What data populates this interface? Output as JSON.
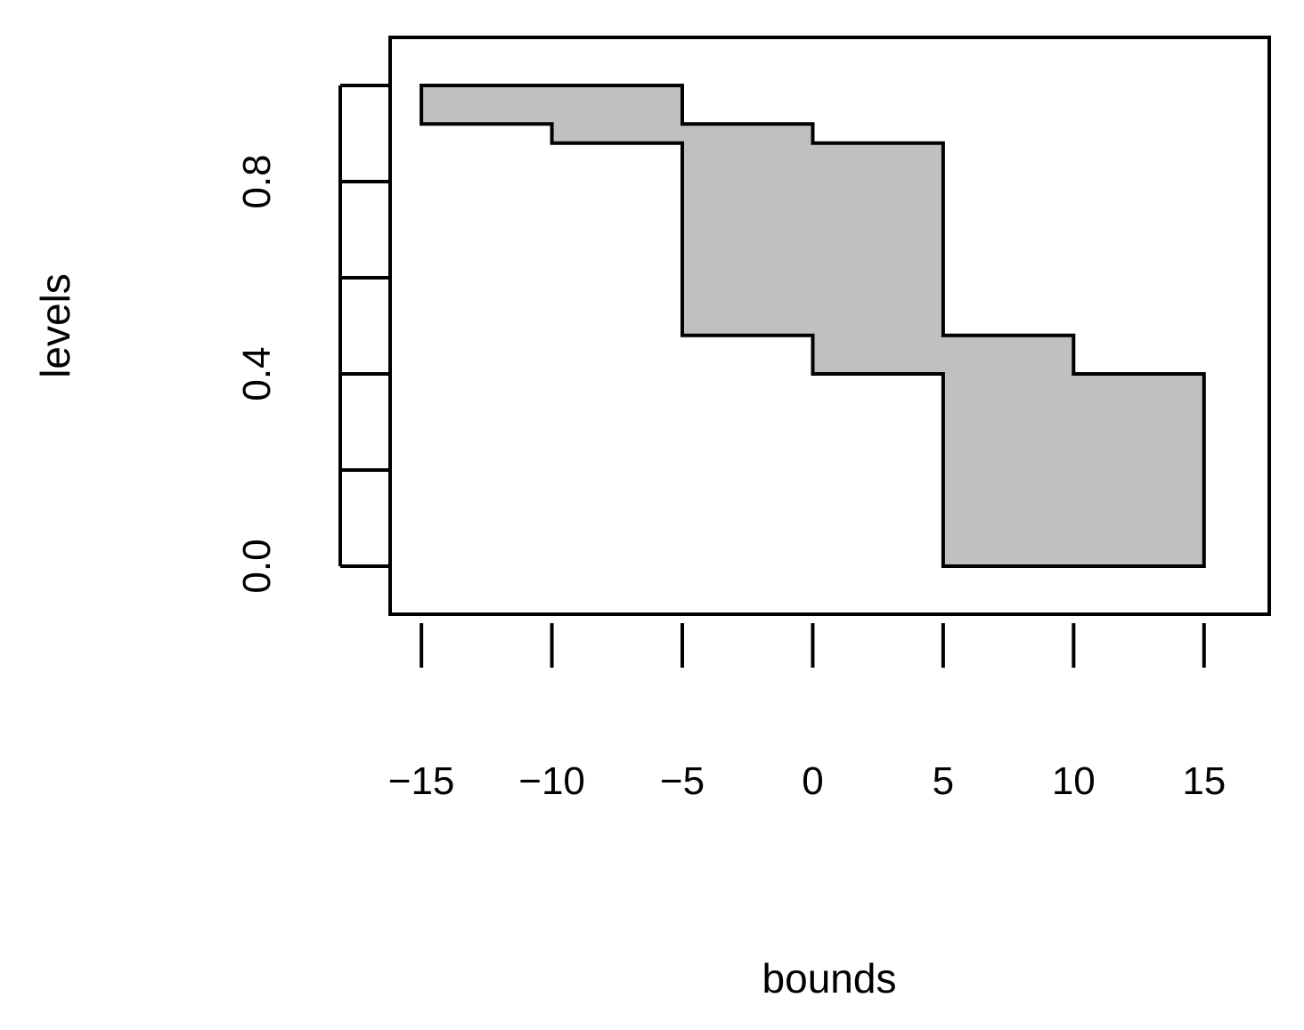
{
  "chart_data": {
    "type": "area",
    "xlabel": "bounds",
    "ylabel": "levels",
    "xlim": [
      -16.2,
      17.5
    ],
    "ylim": [
      -0.1,
      1.1
    ],
    "x_ticks": [
      -15,
      -10,
      -5,
      0,
      5,
      10,
      15
    ],
    "x_tick_labels": [
      "−15",
      "−10",
      "−5",
      "0",
      "5",
      "10",
      "15"
    ],
    "y_ticks": [
      0.0,
      0.2,
      0.4,
      0.6,
      0.8,
      1.0
    ],
    "y_tick_labels": [
      "0.0",
      "",
      "0.4",
      "",
      "0.8",
      ""
    ],
    "grid": false,
    "fill_color": "#c0c0c0",
    "bands": [
      {
        "x_start": -15,
        "x_end": -10,
        "lower": 0.92,
        "upper": 1.0
      },
      {
        "x_start": -10,
        "x_end": -5,
        "lower": 0.88,
        "upper": 1.0
      },
      {
        "x_start": -5,
        "x_end": 0,
        "lower": 0.48,
        "upper": 0.92
      },
      {
        "x_start": 0,
        "x_end": 5,
        "lower": 0.4,
        "upper": 0.88
      },
      {
        "x_start": 5,
        "x_end": 10,
        "lower": 0.0,
        "upper": 0.48
      },
      {
        "x_start": 10,
        "x_end": 15,
        "lower": 0.0,
        "upper": 0.4
      }
    ]
  }
}
